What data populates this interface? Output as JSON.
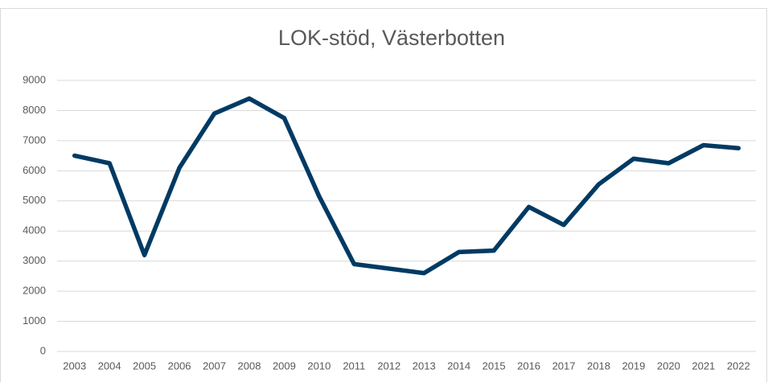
{
  "chart_data": {
    "type": "line",
    "title": "LOK-stöd, Västerbotten",
    "categories": [
      "2003",
      "2004",
      "2005",
      "2006",
      "2007",
      "2008",
      "2009",
      "2010",
      "2011",
      "2012",
      "2013",
      "2014",
      "2015",
      "2016",
      "2017",
      "2018",
      "2019",
      "2020",
      "2021",
      "2022"
    ],
    "series": [
      {
        "name": "LOK-stöd",
        "color": "#003a63",
        "values": [
          6500,
          6250,
          3200,
          6100,
          7900,
          8400,
          7750,
          5150,
          2900,
          2750,
          2600,
          3300,
          3350,
          4800,
          4200,
          5550,
          6400,
          6250,
          6850,
          6750
        ]
      }
    ],
    "ylim": [
      0,
      9000
    ],
    "yticks": [
      0,
      1000,
      2000,
      3000,
      4000,
      5000,
      6000,
      7000,
      8000,
      9000
    ],
    "grid": true
  }
}
